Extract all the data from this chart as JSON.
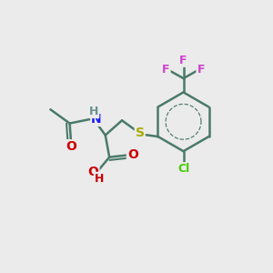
{
  "background_color": "#ebebeb",
  "bond_color": "#4a7a6a",
  "bond_width": 1.8,
  "atoms": {
    "N": {
      "color": "#1a1aff",
      "fontsize": 10
    },
    "H_N": {
      "color": "#6a9090",
      "fontsize": 9
    },
    "H_O": {
      "color": "#cc0000",
      "fontsize": 9
    },
    "O": {
      "color": "#cc0000",
      "fontsize": 10
    },
    "S": {
      "color": "#aaaa00",
      "fontsize": 10
    },
    "Cl": {
      "color": "#44cc00",
      "fontsize": 9
    },
    "F": {
      "color": "#cc44cc",
      "fontsize": 9
    }
  }
}
